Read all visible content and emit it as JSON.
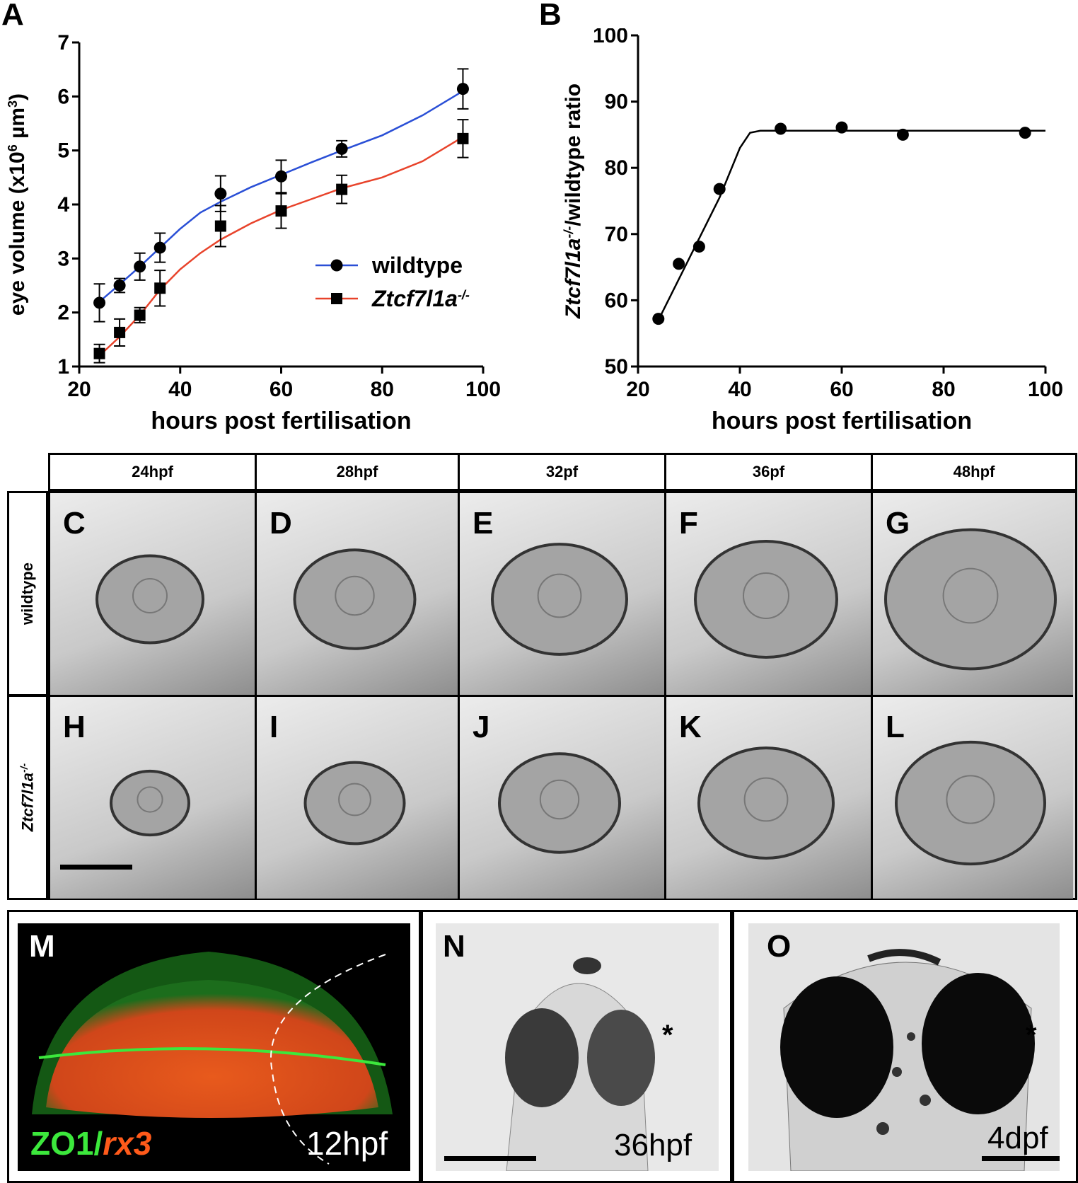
{
  "panels": {
    "A": "A",
    "B": "B",
    "C": "C",
    "D": "D",
    "E": "E",
    "F": "F",
    "G": "G",
    "H": "H",
    "I": "I",
    "J": "J",
    "K": "K",
    "L": "L",
    "M": "M",
    "N": "N",
    "O": "O"
  },
  "grid": {
    "columns": [
      "24hpf",
      "28hpf",
      "32pf",
      "36pf",
      "48hpf"
    ],
    "rows": [
      "wildtype",
      "Ztcf7l1a-/-"
    ],
    "row_wildtype": "wildtype",
    "row_mutant_base": "Ztcf7l1a",
    "row_mutant_sup": "-/-"
  },
  "panel_M": {
    "label_zo1": "ZO1/",
    "label_rx3": "rx3",
    "stage": "12hpf"
  },
  "panel_N": {
    "stage": "36hpf",
    "asterisk": "*"
  },
  "panel_O": {
    "stage": "4dpf",
    "asterisk": "*"
  },
  "colors": {
    "wildtype_line": "#2a4fd6",
    "mutant_line": "#e8432b",
    "zo1": "#33d633",
    "rx3": "#ff5a1a"
  },
  "chart_data": [
    {
      "type": "line",
      "panel": "A",
      "xlabel": "hours post fertilisation",
      "ylabel_prefix": "eye volume (x10",
      "ylabel_sup1": "6",
      "ylabel_mid": " µm",
      "ylabel_sup2": "3",
      "ylabel_suffix": ")",
      "xlim": [
        20,
        100
      ],
      "ylim": [
        1,
        7
      ],
      "xticks": [
        20,
        40,
        60,
        80,
        100
      ],
      "yticks": [
        1,
        2,
        3,
        4,
        5,
        6,
        7
      ],
      "legend_position": "center-right",
      "series": [
        {
          "name": "wildtype",
          "marker": "circle",
          "color": "#2a4fd6",
          "x": [
            24,
            28,
            32,
            36,
            48,
            60,
            72,
            96
          ],
          "y": [
            2.18,
            2.5,
            2.85,
            3.2,
            4.2,
            4.52,
            5.03,
            6.14
          ],
          "err": [
            0.35,
            0.13,
            0.25,
            0.27,
            0.33,
            0.3,
            0.15,
            0.37
          ],
          "fit": [
            [
              24,
              2.2
            ],
            [
              28,
              2.52
            ],
            [
              32,
              2.85
            ],
            [
              36,
              3.2
            ],
            [
              40,
              3.55
            ],
            [
              44,
              3.85
            ],
            [
              48,
              4.05
            ],
            [
              54,
              4.32
            ],
            [
              60,
              4.55
            ],
            [
              66,
              4.78
            ],
            [
              72,
              5.0
            ],
            [
              80,
              5.28
            ],
            [
              88,
              5.65
            ],
            [
              96,
              6.1
            ]
          ]
        },
        {
          "name": "Ztcf7l1a",
          "name_sup": "-/-",
          "marker": "square",
          "color": "#e8432b",
          "x": [
            24,
            28,
            32,
            36,
            48,
            60,
            72,
            96
          ],
          "y": [
            1.24,
            1.63,
            1.95,
            2.45,
            3.6,
            3.88,
            4.28,
            5.22
          ],
          "err": [
            0.17,
            0.25,
            0.14,
            0.33,
            0.38,
            0.32,
            0.26,
            0.35
          ],
          "fit": [
            [
              24,
              1.2
            ],
            [
              28,
              1.55
            ],
            [
              32,
              1.95
            ],
            [
              36,
              2.42
            ],
            [
              40,
              2.8
            ],
            [
              44,
              3.1
            ],
            [
              48,
              3.35
            ],
            [
              54,
              3.65
            ],
            [
              60,
              3.9
            ],
            [
              66,
              4.1
            ],
            [
              72,
              4.3
            ],
            [
              80,
              4.5
            ],
            [
              88,
              4.8
            ],
            [
              96,
              5.25
            ]
          ]
        }
      ]
    },
    {
      "type": "line",
      "panel": "B",
      "xlabel": "hours post fertilisation",
      "ylabel_prefix": "Ztcf7l1a",
      "ylabel_sup": "-/-",
      "ylabel_suffix": "/wildtype ratio",
      "xlim": [
        20,
        100
      ],
      "ylim": [
        50,
        100
      ],
      "xticks": [
        20,
        40,
        60,
        80,
        100
      ],
      "yticks": [
        50,
        60,
        70,
        80,
        90,
        100
      ],
      "series": [
        {
          "marker": "circle",
          "color": "#000000",
          "x": [
            24,
            28,
            32,
            36,
            48,
            60,
            72,
            96
          ],
          "y": [
            57.2,
            65.5,
            68.1,
            76.8,
            85.9,
            86.1,
            85.0,
            85.3
          ],
          "fit": [
            [
              24,
              57.0
            ],
            [
              36,
              75.5
            ],
            [
              40,
              83.0
            ],
            [
              42,
              85.3
            ],
            [
              44,
              85.6
            ],
            [
              100,
              85.6
            ]
          ]
        }
      ]
    }
  ]
}
